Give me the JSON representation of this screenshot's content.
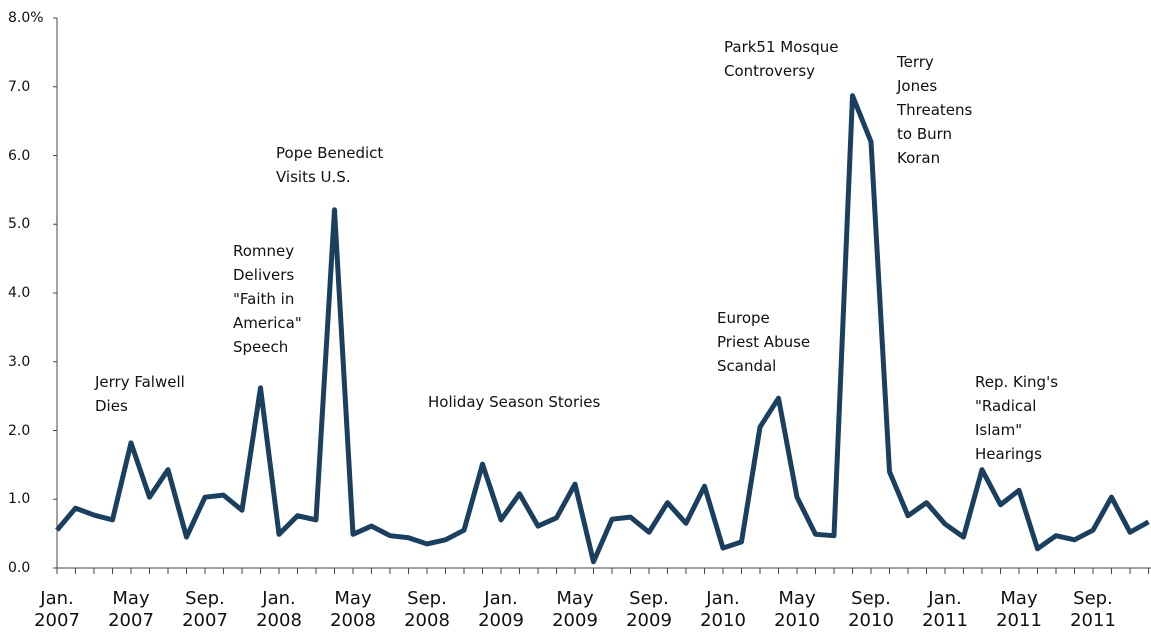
{
  "chart_data": {
    "type": "line",
    "categories": [
      "Jan.\n2007",
      null,
      null,
      null,
      "May\n2007",
      null,
      null,
      null,
      "Sep.\n2007",
      null,
      null,
      null,
      "Jan.\n2008",
      null,
      null,
      null,
      "May\n2008",
      null,
      null,
      null,
      "Sep.\n2008",
      null,
      null,
      null,
      "Jan.\n2009",
      null,
      null,
      null,
      "May\n2009",
      null,
      null,
      null,
      "Sep.\n2009",
      null,
      null,
      null,
      "Jan.\n2010",
      null,
      null,
      null,
      "May\n2010",
      null,
      null,
      null,
      "Sep.\n2010",
      null,
      null,
      null,
      "Jan.\n2011",
      null,
      null,
      null,
      "May\n2011",
      null,
      null,
      null,
      "Sep.\n2011",
      null,
      null,
      null
    ],
    "series": [
      {
        "color": "#1b3f5e",
        "values": [
          0.55,
          0.87,
          0.77,
          0.7,
          1.82,
          1.03,
          1.43,
          0.45,
          1.03,
          1.06,
          0.84,
          2.62,
          0.49,
          0.76,
          0.7,
          5.21,
          0.49,
          0.61,
          0.47,
          0.44,
          0.35,
          0.41,
          0.55,
          1.51,
          0.7,
          1.08,
          0.61,
          0.73,
          1.22,
          0.09,
          0.71,
          0.74,
          0.52,
          0.95,
          0.65,
          1.19,
          0.29,
          0.38,
          2.05,
          2.47,
          1.03,
          0.49,
          0.47,
          6.87,
          6.2,
          1.4,
          0.76,
          0.95,
          0.64,
          0.45,
          1.43,
          0.92,
          1.13,
          0.28,
          0.47,
          0.41,
          0.55,
          1.03,
          0.52,
          0.67
        ]
      }
    ],
    "ylim": [
      0,
      8
    ],
    "yticks": [
      {
        "value": 0,
        "label": "0.0"
      },
      {
        "value": 1,
        "label": "1.0"
      },
      {
        "value": 2,
        "label": "2.0"
      },
      {
        "value": 3,
        "label": "3.0"
      },
      {
        "value": 4,
        "label": "4.0"
      },
      {
        "value": 5,
        "label": "5.0"
      },
      {
        "value": 6,
        "label": "6.0"
      },
      {
        "value": 7,
        "label": "7.0"
      },
      {
        "value": 8,
        "label": "8.0%"
      }
    ],
    "grid": false,
    "annotations": [
      "Jerry Falwell\nDies",
      "Romney\nDelivers\n\"Faith in\nAmerica\"\nSpeech",
      "Pope Benedict\nVisits U.S.",
      "Holiday Season Stories",
      "Park51 Mosque\nControversy",
      "Terry\nJones\nThreatens\nto Burn\nKoran",
      "Europe\nPriest Abuse\nScandal",
      "Rep. King's\n\"Radical\nIslam\"\nHearings"
    ]
  }
}
